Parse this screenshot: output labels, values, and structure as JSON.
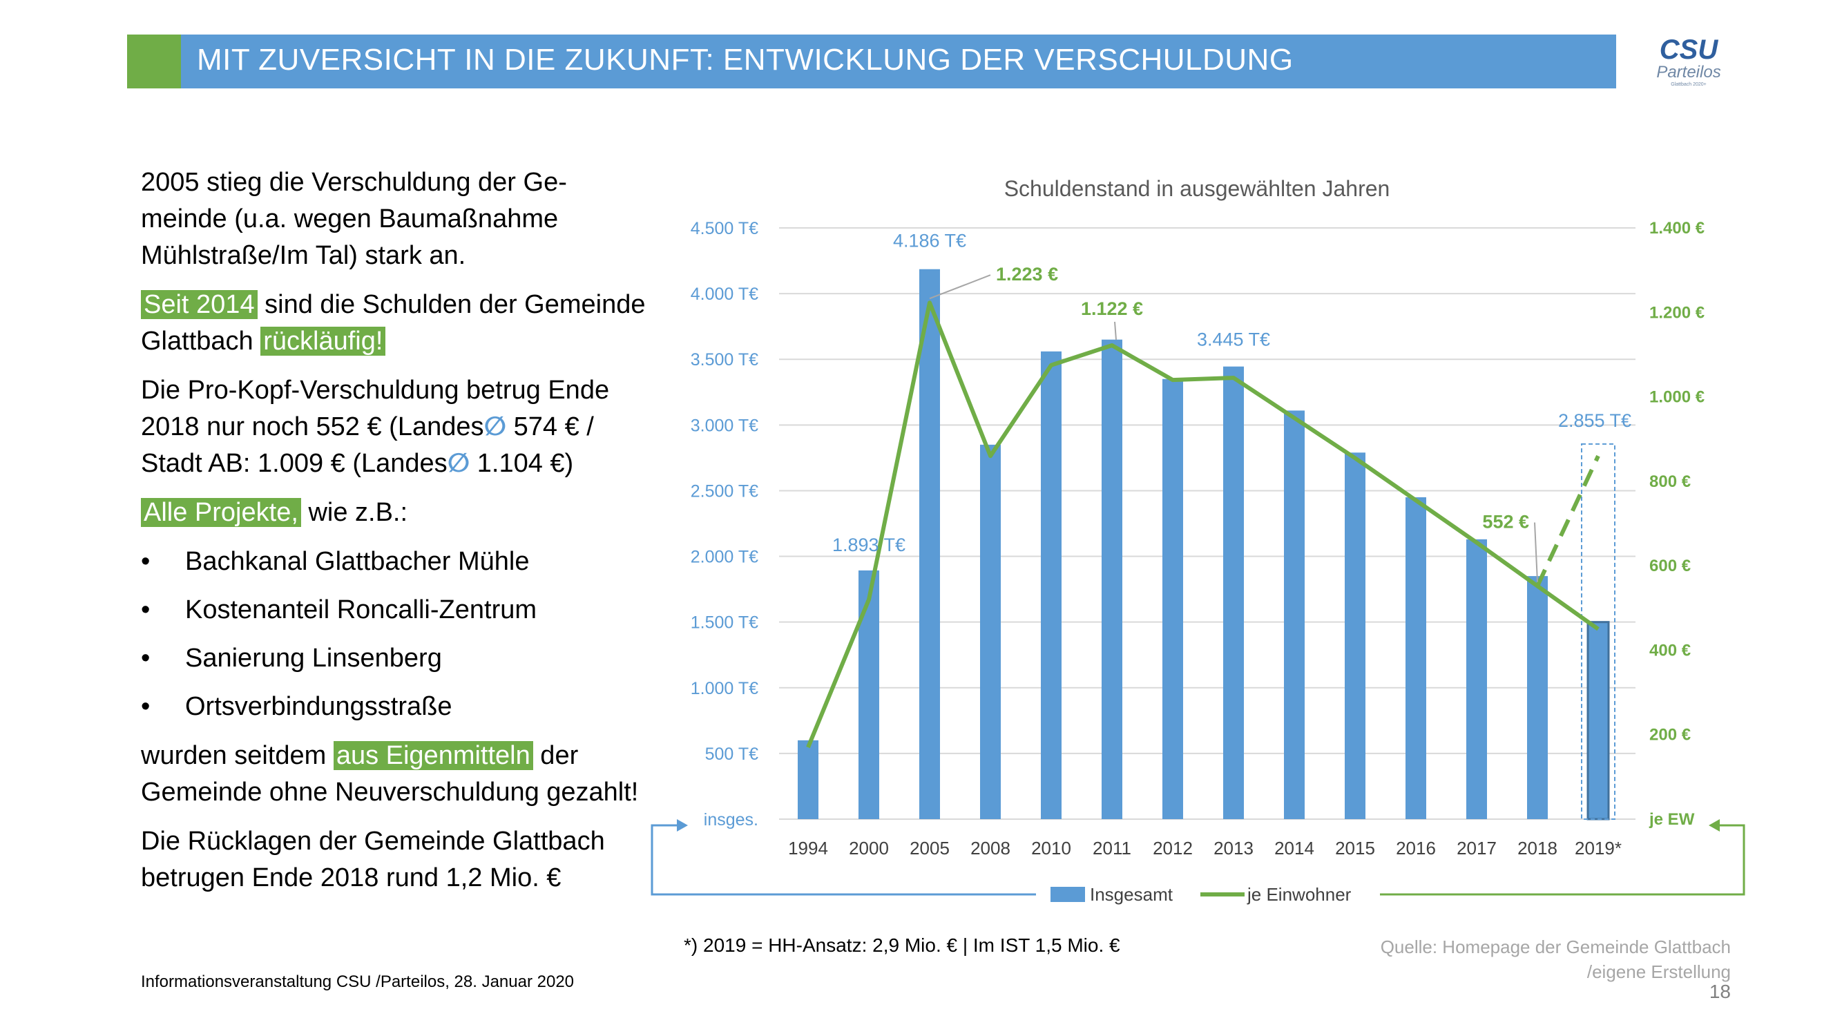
{
  "header": {
    "title": "MIT ZUVERSICHT IN DIE ZUKUNFT: ENTWICKLUNG DER VERSCHULDUNG"
  },
  "logo": {
    "main": "CSU",
    "sub": "Parteilos",
    "tagline": "Glattbach 2020+"
  },
  "text": {
    "p1": "2005 stieg die Verschuldung der Ge-meinde (u.a. wegen Baumaßnahme Mühlstraße/Im Tal) stark an.",
    "p2_hl1": "Seit 2014",
    "p2_mid": " sind die Schulden der Gemeinde Glattbach ",
    "p2_hl2": "rückläufig!",
    "p3_a": "Die Pro-Kopf-Verschuldung betrug Ende 2018 nur noch 552 € (Landes",
    "p3_b": " 574 € / Stadt AB: 1.009 € (Landes",
    "p3_c": " 1.104 €)",
    "diameter": "∅",
    "p4_hl": "Alle Projekte,",
    "p4_rest": " wie z.B.:",
    "bullets": [
      "Bachkanal Glattbacher Mühle",
      "Kostenanteil Roncalli-Zentrum",
      "Sanierung Linsenberg",
      "Ortsverbindungsstraße"
    ],
    "p5_a": "wurden seitdem ",
    "p5_hl": "aus Eigenmitteln",
    "p5_b": " der Gemeinde ohne Neuverschuldung gezahlt!",
    "p6": "Die Rücklagen der Gemeinde Glattbach betrugen Ende 2018 rund 1,2 Mio. €"
  },
  "footer": {
    "left": "Informationsveranstaltung CSU /Parteilos, 28. Januar 2020",
    "footnote": "*) 2019 = HH-Ansatz: 2,9 Mio. € | Im IST 1,5 Mio. €",
    "source_line1": "Quelle: Homepage der Gemeinde Glattbach",
    "source_line2": "/eigene  Erstellung",
    "page": "18"
  },
  "colors": {
    "blue": "#5b9bd5",
    "green": "#70ad47",
    "dark_blue_border": "#41719c"
  },
  "chart_data": {
    "type": "bar",
    "title": "Schuldenstand in ausgewählten Jahren",
    "categories": [
      "1994",
      "2000",
      "2005",
      "2008",
      "2010",
      "2011",
      "2012",
      "2013",
      "2014",
      "2015",
      "2016",
      "2017",
      "2018",
      "2019*"
    ],
    "series": [
      {
        "name": "Insgesamt",
        "type": "bar",
        "axis": "left",
        "values": [
          600,
          1893,
          4186,
          2850,
          3560,
          3650,
          3350,
          3445,
          3110,
          2790,
          2450,
          2130,
          1850,
          1500
        ]
      },
      {
        "name": "je Einwohner",
        "type": "line",
        "axis": "right",
        "values": [
          170,
          520,
          1223,
          860,
          1075,
          1122,
          1040,
          1045,
          950,
          855,
          755,
          655,
          552,
          450
        ]
      }
    ],
    "highlight": {
      "category": "2019*",
      "planned_total": 2855,
      "planned_per_capita": 860
    },
    "y_left": {
      "min": 0,
      "max": 4500,
      "step": 500,
      "unit_label": "insges.",
      "ticks": [
        "500 T€",
        "1.000 T€",
        "1.500 T€",
        "2.000 T€",
        "2.500 T€",
        "3.000 T€",
        "3.500 T€",
        "4.000 T€",
        "4.500 T€"
      ]
    },
    "y_right": {
      "min": 0,
      "max": 1400,
      "step": 200,
      "unit_label": "je EW",
      "ticks": [
        "200 €",
        "400 €",
        "600 €",
        "800 €",
        "1.000 €",
        "1.200 €",
        "1.400 €"
      ]
    },
    "annotations": [
      {
        "text": "1.893 T€",
        "series": "Insgesamt",
        "category": "2000"
      },
      {
        "text": "4.186 T€",
        "series": "Insgesamt",
        "category": "2005"
      },
      {
        "text": "3.445 T€",
        "series": "Insgesamt",
        "category": "2013"
      },
      {
        "text": "2.855 T€",
        "series": "Insgesamt",
        "category": "2019*"
      },
      {
        "text": "1.223 €",
        "series": "je Einwohner",
        "category": "2005"
      },
      {
        "text": "1.122 €",
        "series": "je Einwohner",
        "category": "2011"
      },
      {
        "text": "552 €",
        "series": "je Einwohner",
        "category": "2018"
      }
    ],
    "grid": true,
    "legend_position": "bottom"
  }
}
